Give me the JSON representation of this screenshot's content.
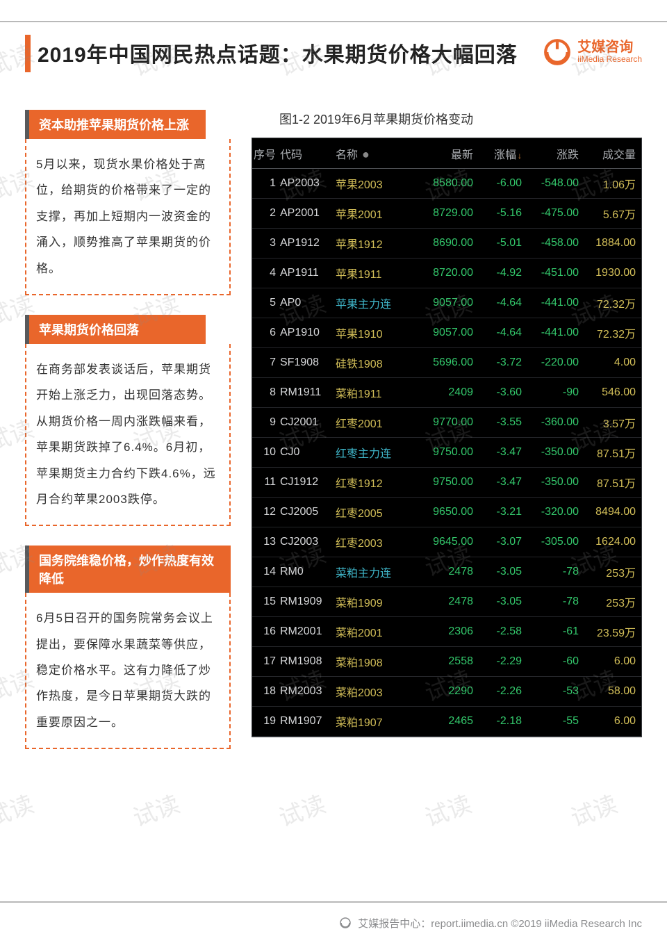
{
  "watermark_text": "试读",
  "header": {
    "title": "2019年中国网民热点话题：水果期货价格大幅回落",
    "brand_cn": "艾媒咨询",
    "brand_en": "iiMedia Research",
    "accent_color": "#e9662b"
  },
  "left": {
    "boxes": [
      {
        "heading": "资本助推苹果期货价格上涨",
        "body": "5月以来，现货水果价格处于高位，给期货的价格带来了一定的支撑，再加上短期内一波资金的涌入，顺势推高了苹果期货的价格。"
      },
      {
        "heading": "苹果期货价格回落",
        "body": "在商务部发表谈话后，苹果期货开始上涨乏力，出现回落态势。从期货价格一周内涨跌幅来看，苹果期货跌掉了6.4%。6月初，苹果期货主力合约下跌4.6%，远月合约苹果2003跌停。"
      },
      {
        "heading": "国务院维稳价格，炒作热度有效降低",
        "body": "6月5日召开的国务院常务会议上提出，要保障水果蔬菜等供应，稳定价格水平。这有力降低了炒作热度，是今日苹果期货大跌的重要原因之一。"
      }
    ]
  },
  "chart": {
    "caption": "图1-2 2019年6月苹果期货价格变动",
    "background_color": "#000000",
    "text_color": "#a9acb0",
    "green": "#33c76b",
    "cyan": "#3fb6c9",
    "yellow": "#d2be58",
    "columns": [
      "序号",
      "代码",
      "名称",
      "最新",
      "涨幅",
      "涨跌",
      "成交量"
    ],
    "sort_icon_col": 4,
    "rows": [
      {
        "idx": 1,
        "code": "AP2003",
        "name": "苹果2003",
        "name_link": false,
        "last": "8580.00",
        "pct": "-6.00",
        "chg": "-548.00",
        "vol": "1.06万",
        "vol_yellow": true
      },
      {
        "idx": 2,
        "code": "AP2001",
        "name": "苹果2001",
        "name_link": false,
        "last": "8729.00",
        "pct": "-5.16",
        "chg": "-475.00",
        "vol": "5.67万",
        "vol_yellow": true
      },
      {
        "idx": 3,
        "code": "AP1912",
        "name": "苹果1912",
        "name_link": false,
        "last": "8690.00",
        "pct": "-5.01",
        "chg": "-458.00",
        "vol": "1884.00",
        "vol_yellow": true
      },
      {
        "idx": 4,
        "code": "AP1911",
        "name": "苹果1911",
        "name_link": false,
        "last": "8720.00",
        "pct": "-4.92",
        "chg": "-451.00",
        "vol": "1930.00",
        "vol_yellow": true
      },
      {
        "idx": 5,
        "code": "AP0",
        "name": "苹果主力连",
        "name_link": true,
        "last": "9057.00",
        "pct": "-4.64",
        "chg": "-441.00",
        "vol": "72.32万",
        "vol_yellow": true
      },
      {
        "idx": 6,
        "code": "AP1910",
        "name": "苹果1910",
        "name_link": false,
        "last": "9057.00",
        "pct": "-4.64",
        "chg": "-441.00",
        "vol": "72.32万",
        "vol_yellow": true
      },
      {
        "idx": 7,
        "code": "SF1908",
        "name": "硅铁1908",
        "name_link": false,
        "last": "5696.00",
        "pct": "-3.72",
        "chg": "-220.00",
        "vol": "4.00",
        "vol_yellow": true
      },
      {
        "idx": 8,
        "code": "RM1911",
        "name": "菜粕1911",
        "name_link": false,
        "last": "2409",
        "pct": "-3.60",
        "chg": "-90",
        "vol": "546.00",
        "vol_yellow": true
      },
      {
        "idx": 9,
        "code": "CJ2001",
        "name": "红枣2001",
        "name_link": false,
        "last": "9770.00",
        "pct": "-3.55",
        "chg": "-360.00",
        "vol": "3.57万",
        "vol_yellow": true
      },
      {
        "idx": 10,
        "code": "CJ0",
        "name": "红枣主力连",
        "name_link": true,
        "last": "9750.00",
        "pct": "-3.47",
        "chg": "-350.00",
        "vol": "87.51万",
        "vol_yellow": true
      },
      {
        "idx": 11,
        "code": "CJ1912",
        "name": "红枣1912",
        "name_link": false,
        "last": "9750.00",
        "pct": "-3.47",
        "chg": "-350.00",
        "vol": "87.51万",
        "vol_yellow": true
      },
      {
        "idx": 12,
        "code": "CJ2005",
        "name": "红枣2005",
        "name_link": false,
        "last": "9650.00",
        "pct": "-3.21",
        "chg": "-320.00",
        "vol": "8494.00",
        "vol_yellow": true
      },
      {
        "idx": 13,
        "code": "CJ2003",
        "name": "红枣2003",
        "name_link": false,
        "last": "9645.00",
        "pct": "-3.07",
        "chg": "-305.00",
        "vol": "1624.00",
        "vol_yellow": true
      },
      {
        "idx": 14,
        "code": "RM0",
        "name": "菜粕主力连",
        "name_link": true,
        "last": "2478",
        "pct": "-3.05",
        "chg": "-78",
        "vol": "253万",
        "vol_yellow": true
      },
      {
        "idx": 15,
        "code": "RM1909",
        "name": "菜粕1909",
        "name_link": false,
        "last": "2478",
        "pct": "-3.05",
        "chg": "-78",
        "vol": "253万",
        "vol_yellow": true
      },
      {
        "idx": 16,
        "code": "RM2001",
        "name": "菜粕2001",
        "name_link": false,
        "last": "2306",
        "pct": "-2.58",
        "chg": "-61",
        "vol": "23.59万",
        "vol_yellow": true
      },
      {
        "idx": 17,
        "code": "RM1908",
        "name": "菜粕1908",
        "name_link": false,
        "last": "2558",
        "pct": "-2.29",
        "chg": "-60",
        "vol": "6.00",
        "vol_yellow": true
      },
      {
        "idx": 18,
        "code": "RM2003",
        "name": "菜粕2003",
        "name_link": false,
        "last": "2290",
        "pct": "-2.26",
        "chg": "-53",
        "vol": "58.00",
        "vol_yellow": true
      },
      {
        "idx": 19,
        "code": "RM1907",
        "name": "菜粕1907",
        "name_link": false,
        "last": "2465",
        "pct": "-2.18",
        "chg": "-55",
        "vol": "6.00",
        "vol_yellow": true
      }
    ]
  },
  "footer": {
    "text": "艾媒报告中心：report.iimedia.cn   ©2019  iiMedia Research Inc"
  }
}
